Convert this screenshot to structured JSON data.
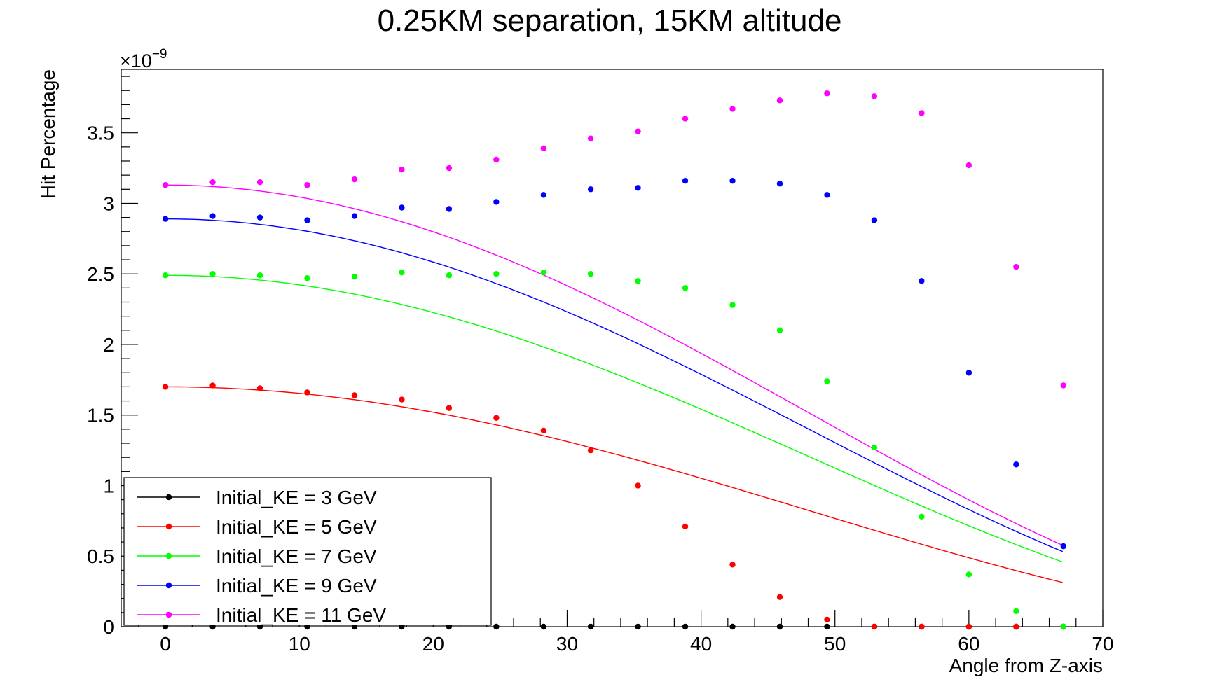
{
  "chart_data": {
    "type": "scatter",
    "title": "0.25KM separation, 15KM altitude",
    "xlabel": "Angle from Z-axis",
    "ylabel": "Hit Percentage",
    "y_exponent_label": "×10",
    "y_exponent_power": "−9",
    "xlim": [
      -3.3,
      70.0
    ],
    "ylim": [
      0,
      3.95
    ],
    "x_major_ticks": [
      0,
      10,
      20,
      30,
      40,
      50,
      60,
      70
    ],
    "x_tick_labels": [
      "0",
      "10",
      "20",
      "30",
      "40",
      "50",
      "60",
      "70"
    ],
    "y_major_ticks": [
      0,
      0.5,
      1,
      1.5,
      2,
      2.5,
      3,
      3.5
    ],
    "y_tick_labels": [
      "0",
      "0.5",
      "1",
      "1.5",
      "2",
      "2.5",
      "3",
      "3.5"
    ],
    "grid": false,
    "legend_position": "bottom-left",
    "x": [
      0,
      3.53,
      7.06,
      10.59,
      14.12,
      17.65,
      21.18,
      24.71,
      28.24,
      31.76,
      35.29,
      38.82,
      42.35,
      45.88,
      49.41,
      52.94,
      56.47,
      60.0,
      63.53,
      67.06
    ],
    "series": [
      {
        "name": "Initial_KE = 3 GeV",
        "color": "#000000",
        "values": [
          0,
          0,
          0,
          0,
          0,
          0,
          0,
          0,
          0,
          0,
          0,
          0,
          0,
          0,
          0,
          0,
          0,
          0,
          0,
          0
        ]
      },
      {
        "name": "Initial_KE = 5 GeV",
        "color": "#ff0000",
        "values": [
          1.7,
          1.71,
          1.69,
          1.66,
          1.64,
          1.61,
          1.55,
          1.48,
          1.39,
          1.25,
          1.0,
          0.71,
          0.44,
          0.21,
          0.05,
          0.0,
          0.0,
          0.0,
          0.0,
          0.0
        ],
        "fit_peak": 1.7
      },
      {
        "name": "Initial_KE = 7 GeV",
        "color": "#00ff00",
        "values": [
          2.49,
          2.5,
          2.49,
          2.47,
          2.48,
          2.51,
          2.49,
          2.5,
          2.51,
          2.5,
          2.45,
          2.4,
          2.28,
          2.1,
          1.74,
          1.27,
          0.78,
          0.37,
          0.11,
          0.0
        ],
        "fit_peak": 2.49
      },
      {
        "name": "Initial_KE = 9 GeV",
        "color": "#0000ff",
        "values": [
          2.89,
          2.91,
          2.9,
          2.88,
          2.91,
          2.97,
          2.96,
          3.01,
          3.06,
          3.1,
          3.11,
          3.16,
          3.16,
          3.14,
          3.06,
          2.88,
          2.45,
          1.8,
          1.15,
          0.57
        ],
        "fit_peak": 2.89
      },
      {
        "name": "Initial_KE = 11 GeV",
        "color": "#ff00ff",
        "values": [
          3.13,
          3.15,
          3.15,
          3.13,
          3.17,
          3.24,
          3.25,
          3.31,
          3.39,
          3.46,
          3.51,
          3.6,
          3.67,
          3.73,
          3.78,
          3.76,
          3.64,
          3.27,
          2.55,
          1.71
        ],
        "fit_peak": 3.13
      }
    ]
  }
}
